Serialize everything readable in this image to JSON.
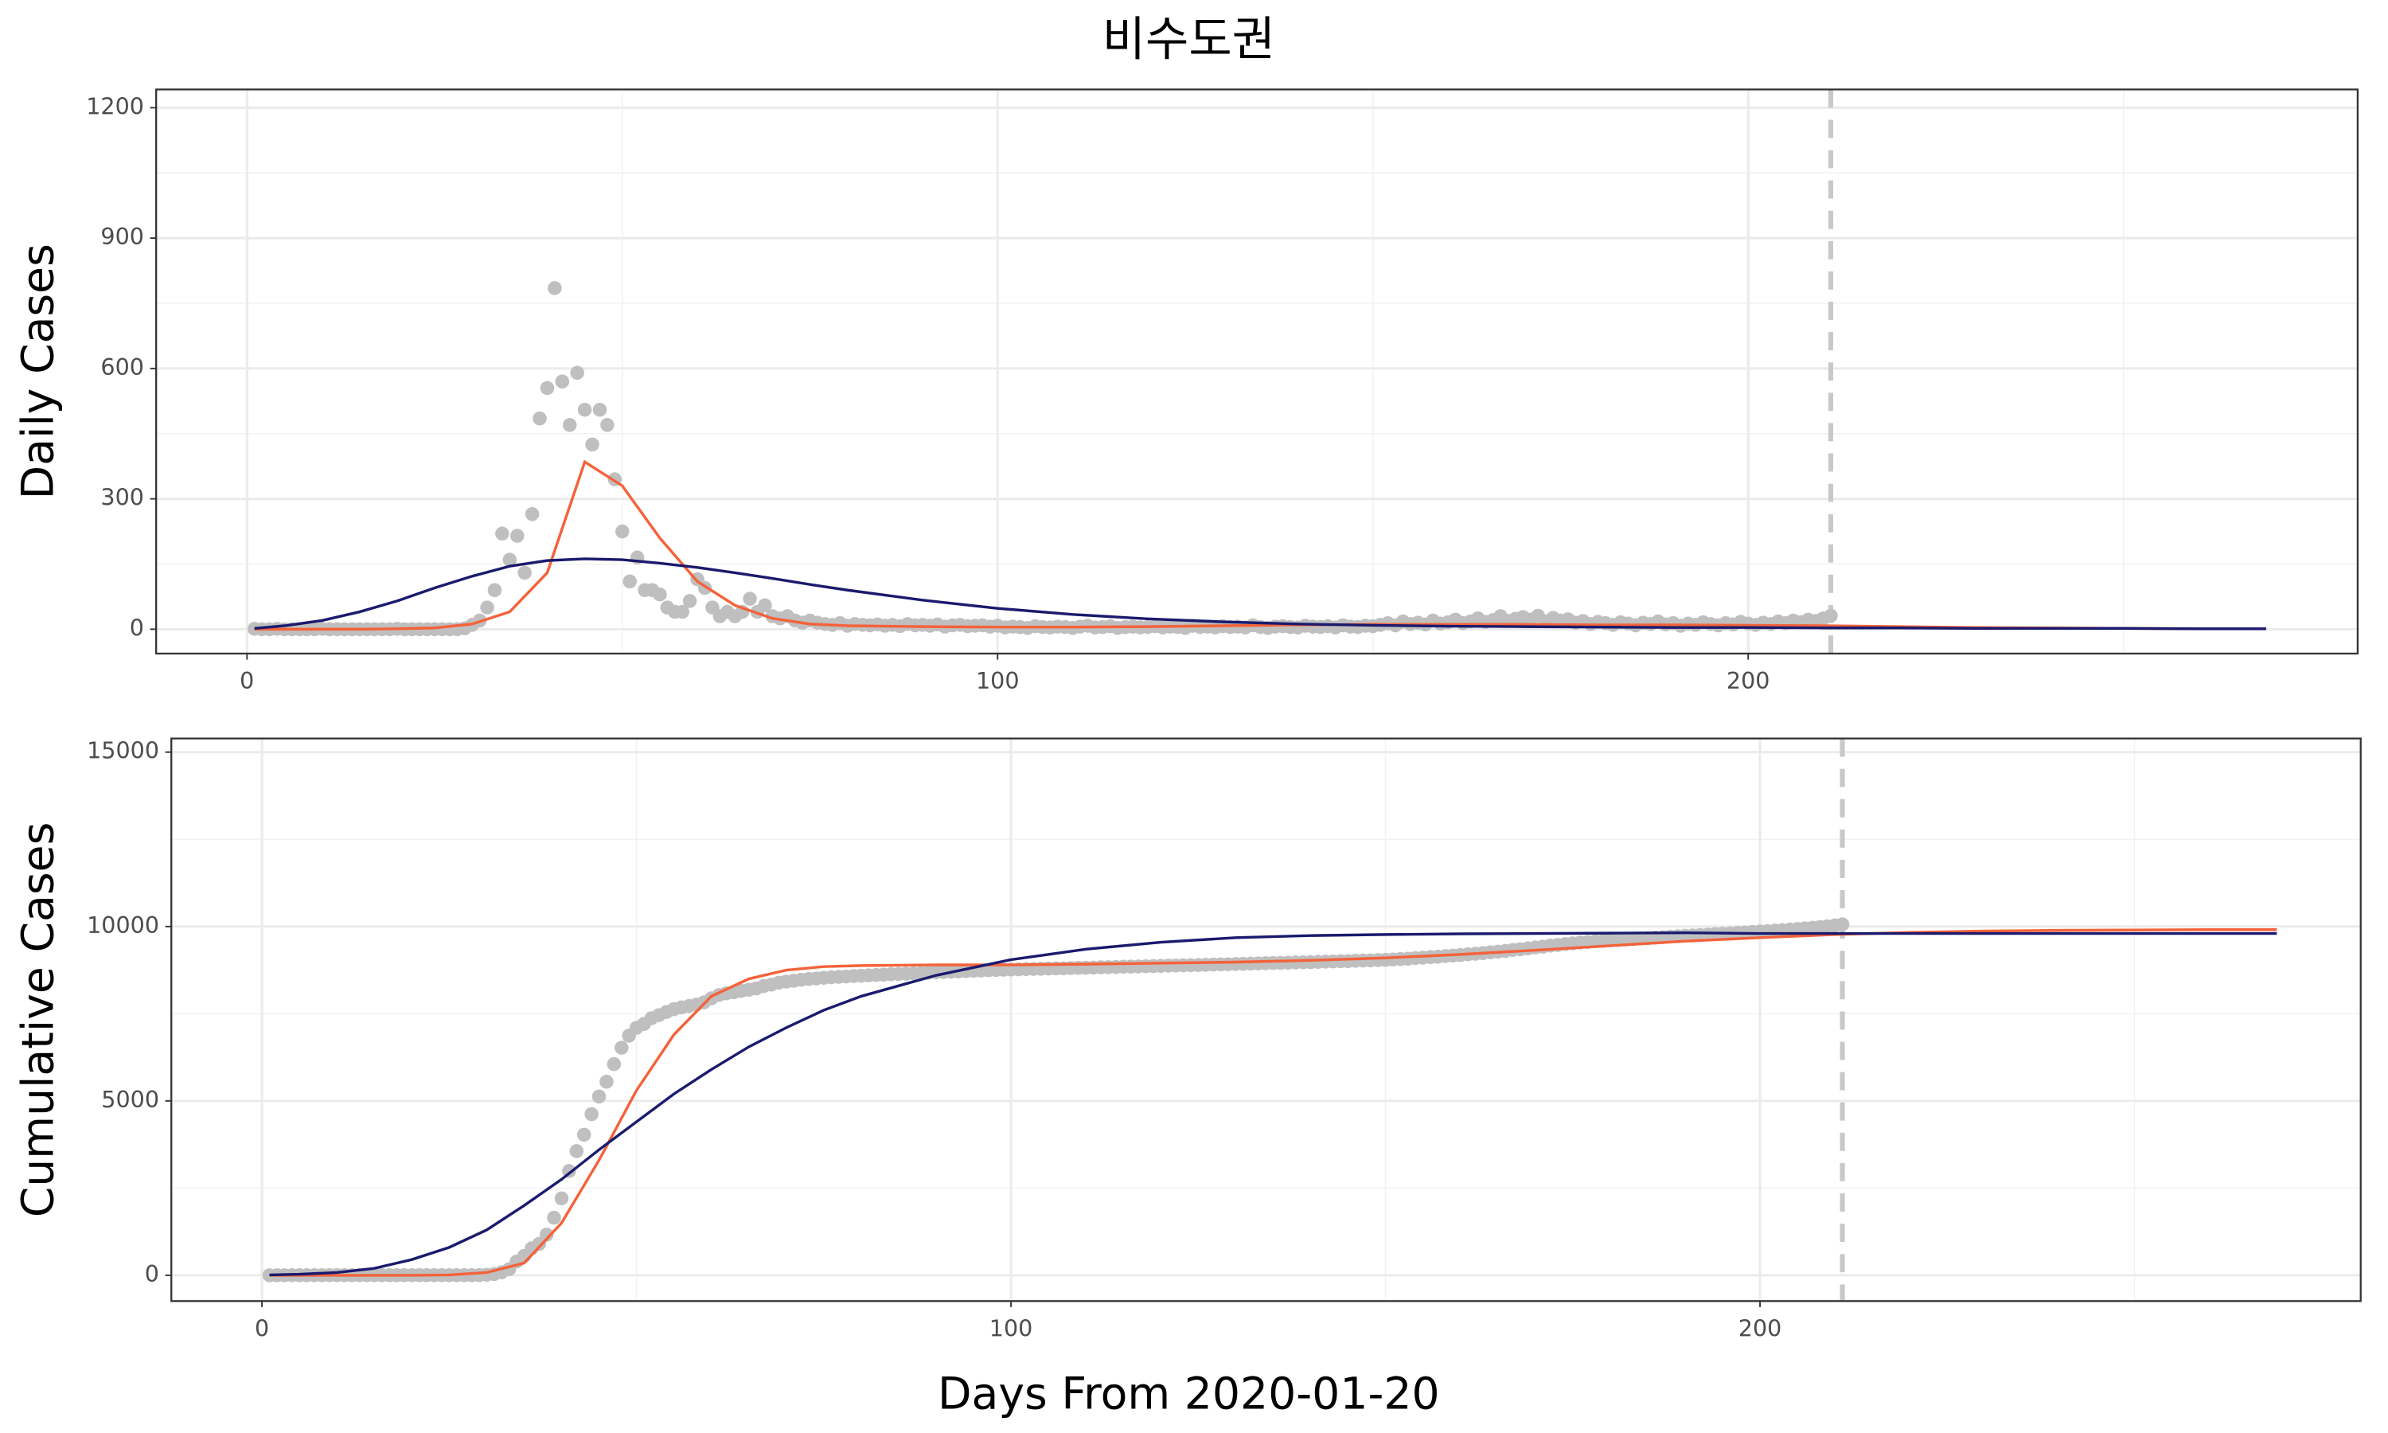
{
  "chart_data": [
    {
      "type": "scatter",
      "title": "비수도권",
      "ylabel": "Daily Cases",
      "point_color": "#bfbfbf",
      "grid": true,
      "xlim": [
        -12.1,
        281.2
      ],
      "xticks": [
        0,
        100,
        200
      ],
      "minor_xticks": [
        50,
        150,
        250
      ],
      "ylim": [
        -56,
        1242
      ],
      "yticks": [
        0,
        300,
        600,
        900,
        1200
      ],
      "minor_yticks": [
        150,
        450,
        750,
        1050
      ],
      "vline": 211,
      "vline_color": "#c8c8c8",
      "x": [
        1,
        2,
        3,
        4,
        5,
        6,
        7,
        8,
        9,
        10,
        11,
        12,
        13,
        14,
        15,
        16,
        17,
        18,
        19,
        20,
        21,
        22,
        23,
        24,
        25,
        26,
        27,
        28,
        29,
        30,
        31,
        32,
        33,
        34,
        35,
        36,
        37,
        38,
        39,
        40,
        41,
        42,
        43,
        44,
        45,
        46,
        47,
        48,
        49,
        50,
        51,
        52,
        53,
        54,
        55,
        56,
        57,
        58,
        59,
        60,
        61,
        62,
        63,
        64,
        65,
        66,
        67,
        68,
        69,
        70,
        71,
        72,
        73,
        74,
        75,
        76,
        77,
        78,
        79,
        80,
        81,
        82,
        83,
        84,
        85,
        86,
        87,
        88,
        89,
        90,
        91,
        92,
        93,
        94,
        95,
        96,
        97,
        98,
        99,
        100,
        101,
        102,
        103,
        104,
        105,
        106,
        107,
        108,
        109,
        110,
        111,
        112,
        113,
        114,
        115,
        116,
        117,
        118,
        119,
        120,
        121,
        122,
        123,
        124,
        125,
        126,
        127,
        128,
        129,
        130,
        131,
        132,
        133,
        134,
        135,
        136,
        137,
        138,
        139,
        140,
        141,
        142,
        143,
        144,
        145,
        146,
        147,
        148,
        149,
        150,
        151,
        152,
        153,
        154,
        155,
        156,
        157,
        158,
        159,
        160,
        161,
        162,
        163,
        164,
        165,
        166,
        167,
        168,
        169,
        170,
        171,
        172,
        173,
        174,
        175,
        176,
        177,
        178,
        179,
        180,
        181,
        182,
        183,
        184,
        185,
        186,
        187,
        188,
        189,
        190,
        191,
        192,
        193,
        194,
        195,
        196,
        197,
        198,
        199,
        200,
        201,
        202,
        203,
        204,
        205,
        206,
        207,
        208,
        209,
        210,
        211
      ],
      "values": [
        1,
        0,
        0,
        1,
        0,
        0,
        0,
        0,
        0,
        1,
        0,
        0,
        0,
        0,
        0,
        0,
        0,
        0,
        0,
        1,
        0,
        0,
        0,
        0,
        0,
        0,
        0,
        0,
        2,
        10,
        20,
        50,
        90,
        220,
        160,
        215,
        130,
        265,
        485,
        555,
        785,
        570,
        470,
        590,
        505,
        425,
        505,
        470,
        345,
        225,
        110,
        165,
        90,
        90,
        80,
        50,
        40,
        40,
        65,
        115,
        95,
        50,
        30,
        40,
        30,
        40,
        70,
        40,
        55,
        30,
        25,
        30,
        20,
        15,
        20,
        15,
        12,
        10,
        14,
        8,
        12,
        10,
        9,
        11,
        8,
        10,
        7,
        12,
        9,
        10,
        8,
        11,
        6,
        9,
        10,
        7,
        8,
        9,
        6,
        8,
        4,
        6,
        5,
        3,
        7,
        5,
        4,
        6,
        5,
        3,
        6,
        8,
        4,
        5,
        7,
        3,
        5,
        6,
        4,
        5,
        7,
        4,
        6,
        5,
        3,
        8,
        5,
        6,
        4,
        7,
        5,
        6,
        4,
        9,
        5,
        3,
        6,
        7,
        5,
        4,
        8,
        6,
        5,
        7,
        4,
        9,
        6,
        5,
        8,
        7,
        10,
        14,
        9,
        18,
        12,
        15,
        11,
        20,
        13,
        16,
        22,
        14,
        18,
        25,
        17,
        21,
        30,
        19,
        24,
        28,
        22,
        31,
        18,
        26,
        20,
        23,
        15,
        19,
        12,
        17,
        14,
        10,
        16,
        13,
        9,
        15,
        12,
        18,
        11,
        14,
        8,
        13,
        10,
        16,
        12,
        9,
        14,
        11,
        17,
        13,
        10,
        15,
        12,
        18,
        14,
        20,
        16,
        22,
        19,
        25,
        31
      ],
      "series": [
        {
          "color": "#f4623a",
          "x": [
            1,
            5,
            10,
            15,
            20,
            25,
            30,
            35,
            40,
            45,
            50,
            55,
            60,
            65,
            70,
            75,
            80,
            90,
            100,
            110,
            120,
            130,
            140,
            150,
            160,
            170,
            180,
            190,
            200,
            210,
            220,
            230,
            240,
            250,
            260,
            269
          ],
          "values": [
            0,
            0,
            0,
            0,
            1,
            3,
            12,
            40,
            130,
            385,
            330,
            210,
            110,
            55,
            25,
            12,
            8,
            6,
            5,
            5,
            6,
            8,
            10,
            11,
            11,
            11,
            10,
            10,
            9,
            8,
            6,
            4,
            3,
            2,
            1,
            1
          ]
        },
        {
          "color": "#1a1a6e",
          "x": [
            1,
            5,
            10,
            15,
            20,
            25,
            30,
            35,
            40,
            45,
            50,
            55,
            60,
            65,
            70,
            75,
            80,
            90,
            100,
            110,
            120,
            130,
            140,
            150,
            160,
            170,
            180,
            190,
            200,
            210,
            220,
            230,
            240,
            250,
            260,
            269
          ],
          "values": [
            2,
            8,
            20,
            40,
            65,
            95,
            122,
            145,
            158,
            162,
            160,
            152,
            142,
            130,
            117,
            103,
            90,
            67,
            48,
            34,
            24,
            17,
            12,
            9,
            7,
            6,
            5,
            4,
            4,
            3,
            3,
            2,
            2,
            2,
            1,
            1
          ]
        }
      ]
    },
    {
      "type": "scatter",
      "ylabel": "Cumulative Cases",
      "xlabel": "Days From 2020-01-20",
      "point_color": "#bfbfbf",
      "grid": true,
      "xlim": [
        -12.1,
        280.2
      ],
      "xticks": [
        0,
        100,
        200
      ],
      "minor_xticks": [
        50,
        150,
        250
      ],
      "ylim": [
        -739,
        15391
      ],
      "yticks": [
        0,
        5000,
        10000,
        15000
      ],
      "minor_yticks": [
        2500,
        7500,
        12500
      ],
      "vline": 211,
      "vline_color": "#c8c8c8",
      "x": [
        1,
        2,
        3,
        4,
        5,
        6,
        7,
        8,
        9,
        10,
        11,
        12,
        13,
        14,
        15,
        16,
        17,
        18,
        19,
        20,
        21,
        22,
        23,
        24,
        25,
        26,
        27,
        28,
        29,
        30,
        31,
        32,
        33,
        34,
        35,
        36,
        37,
        38,
        39,
        40,
        41,
        42,
        43,
        44,
        45,
        46,
        47,
        48,
        49,
        50,
        51,
        52,
        53,
        54,
        55,
        56,
        57,
        58,
        59,
        60,
        61,
        62,
        63,
        64,
        65,
        66,
        67,
        68,
        69,
        70,
        71,
        72,
        73,
        74,
        75,
        76,
        77,
        78,
        79,
        80,
        81,
        82,
        83,
        84,
        85,
        86,
        87,
        88,
        89,
        90,
        91,
        92,
        93,
        94,
        95,
        96,
        97,
        98,
        99,
        100,
        101,
        102,
        103,
        104,
        105,
        106,
        107,
        108,
        109,
        110,
        111,
        112,
        113,
        114,
        115,
        116,
        117,
        118,
        119,
        120,
        121,
        122,
        123,
        124,
        125,
        126,
        127,
        128,
        129,
        130,
        131,
        132,
        133,
        134,
        135,
        136,
        137,
        138,
        139,
        140,
        141,
        142,
        143,
        144,
        145,
        146,
        147,
        148,
        149,
        150,
        151,
        152,
        153,
        154,
        155,
        156,
        157,
        158,
        159,
        160,
        161,
        162,
        163,
        164,
        165,
        166,
        167,
        168,
        169,
        170,
        171,
        172,
        173,
        174,
        175,
        176,
        177,
        178,
        179,
        180,
        181,
        182,
        183,
        184,
        185,
        186,
        187,
        188,
        189,
        190,
        191,
        192,
        193,
        194,
        195,
        196,
        197,
        198,
        199,
        200,
        201,
        202,
        203,
        204,
        205,
        206,
        207,
        208,
        209,
        210,
        211
      ],
      "values": [
        1,
        1,
        1,
        2,
        2,
        2,
        2,
        2,
        2,
        3,
        3,
        3,
        3,
        3,
        3,
        3,
        3,
        3,
        3,
        4,
        4,
        4,
        4,
        4,
        4,
        4,
        4,
        4,
        5,
        15,
        35,
        85,
        175,
        395,
        555,
        770,
        900,
        1165,
        1650,
        2205,
        2990,
        3560,
        4030,
        4620,
        5125,
        5550,
        6055,
        6525,
        6870,
        7095,
        7205,
        7370,
        7460,
        7550,
        7630,
        7680,
        7720,
        7760,
        7825,
        7940,
        8035,
        8085,
        8115,
        8155,
        8185,
        8225,
        8295,
        8335,
        8390,
        8420,
        8445,
        8475,
        8495,
        8510,
        8530,
        8545,
        8557,
        8567,
        8581,
        8589,
        8601,
        8611,
        8620,
        8631,
        8639,
        8649,
        8656,
        8668,
        8677,
        8687,
        8695,
        8706,
        8712,
        8721,
        8731,
        8738,
        8746,
        8755,
        8761,
        8769,
        8773,
        8779,
        8784,
        8787,
        8794,
        8799,
        8803,
        8809,
        8814,
        8817,
        8823,
        8831,
        8835,
        8840,
        8847,
        8850,
        8855,
        8861,
        8865,
        8870,
        8877,
        8881,
        8887,
        8892,
        8895,
        8903,
        8908,
        8914,
        8918,
        8925,
        8930,
        8936,
        8940,
        8949,
        8954,
        8957,
        8963,
        8970,
        8975,
        8979,
        8987,
        8993,
        8998,
        9005,
        9009,
        9018,
        9024,
        9029,
        9037,
        9044,
        9054,
        9068,
        9077,
        9095,
        9107,
        9122,
        9133,
        9153,
        9166,
        9182,
        9204,
        9218,
        9236,
        9261,
        9278,
        9299,
        9329,
        9348,
        9372,
        9400,
        9422,
        9453,
        9471,
        9497,
        9517,
        9540,
        9555,
        9574,
        9586,
        9603,
        9617,
        9627,
        9643,
        9656,
        9665,
        9680,
        9692,
        9710,
        9721,
        9735,
        9743,
        9756,
        9766,
        9782,
        9794,
        9803,
        9817,
        9828,
        9845,
        9858,
        9868,
        9883,
        9895,
        9913,
        9927,
        9947,
        9963,
        9985,
        10004,
        10029,
        10060
      ],
      "series": [
        {
          "color": "#f4623a",
          "x": [
            1,
            5,
            10,
            15,
            20,
            25,
            30,
            35,
            40,
            45,
            50,
            55,
            60,
            65,
            70,
            75,
            80,
            90,
            100,
            110,
            120,
            130,
            140,
            150,
            160,
            170,
            180,
            190,
            200,
            210,
            220,
            230,
            240,
            250,
            260,
            269
          ],
          "values": [
            0,
            0,
            0,
            0,
            0,
            10,
            80,
            350,
            1500,
            3300,
            5300,
            6900,
            8000,
            8500,
            8750,
            8850,
            8880,
            8900,
            8900,
            8920,
            8950,
            8980,
            9030,
            9100,
            9200,
            9320,
            9450,
            9580,
            9680,
            9770,
            9830,
            9870,
            9890,
            9900,
            9910,
            9910
          ]
        },
        {
          "color": "#1a1a6e",
          "x": [
            1,
            5,
            10,
            15,
            20,
            25,
            30,
            35,
            40,
            45,
            50,
            55,
            60,
            65,
            70,
            75,
            80,
            90,
            100,
            110,
            120,
            130,
            140,
            150,
            160,
            170,
            180,
            190,
            200,
            210,
            220,
            230,
            240,
            250,
            260,
            269
          ],
          "values": [
            10,
            30,
            80,
            200,
            450,
            800,
            1300,
            2000,
            2750,
            3600,
            4400,
            5200,
            5900,
            6550,
            7100,
            7600,
            8000,
            8600,
            9050,
            9350,
            9550,
            9680,
            9740,
            9770,
            9790,
            9800,
            9810,
            9820,
            9800,
            9800,
            9800,
            9800,
            9800,
            9800,
            9800,
            9800
          ]
        }
      ]
    }
  ]
}
